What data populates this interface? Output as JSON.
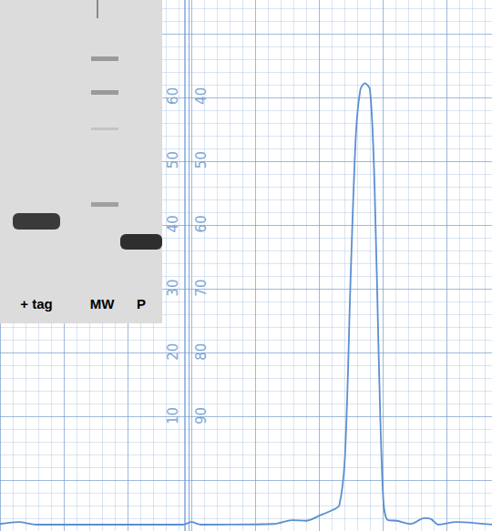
{
  "chart_data": {
    "type": "line",
    "x": [
      0,
      2.9,
      5.7,
      14.3,
      21.4,
      28.6,
      30,
      31.4,
      42.9,
      45.7,
      47.9,
      50,
      52.1,
      53.1,
      54,
      54.9,
      55.7,
      56.4,
      57.1,
      57.9,
      58.6,
      59.3,
      60,
      60.7,
      62.1,
      64.3,
      66.4,
      67.4,
      68.6,
      71.4,
      77
    ],
    "values": [
      -6.9,
      -6.6,
      -7.0,
      -7.0,
      -7.0,
      -7.0,
      -6.6,
      -7.0,
      -6.9,
      -6.3,
      -6.4,
      -5.6,
      -4.7,
      -4.0,
      3.9,
      32.4,
      53.9,
      61.0,
      62.0,
      61.0,
      46.7,
      18.1,
      -3.3,
      -6.3,
      -6.4,
      -6.9,
      -6.0,
      -6.1,
      -7.0,
      -6.6,
      -7.0
    ],
    "color": "#5b8fd0",
    "xlim": [
      0,
      77
    ],
    "ylim": [
      -8,
      75
    ],
    "yticks": [
      10,
      20,
      30,
      40,
      50,
      60
    ],
    "y2lim": [
      108,
      25
    ],
    "y2ticks": [
      40,
      50,
      60,
      70,
      80,
      90
    ],
    "grid": true,
    "tick_labels": "y",
    "annotations": [
      "+ tag",
      "MW",
      "P"
    ]
  }
}
